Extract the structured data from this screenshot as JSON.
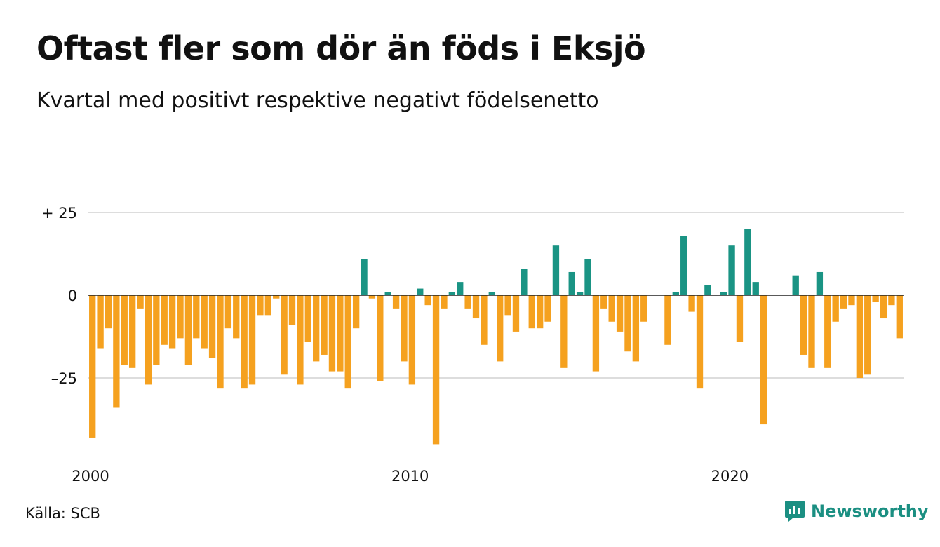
{
  "header": {
    "title": "Oftast fler som dör än föds i Eksjö",
    "subtitle": "Kvartal med positivt respektive negativt födelsenetto"
  },
  "footer": {
    "source": "Källa: SCB",
    "brand": "Newsworthy"
  },
  "colors": {
    "positive": "#1a9484",
    "negative": "#f5a11f",
    "grid": "#dddddd",
    "zero_line": "#222222",
    "brand": "#1b8f82"
  },
  "chart_data": {
    "type": "bar",
    "title": "Oftast fler som dör än föds i Eksjö",
    "subtitle": "Kvartal med positivt respektive negativt födelsenetto",
    "x_start": "2000 Q1",
    "x_ticks": [
      "2000",
      "2010",
      "2020"
    ],
    "y_ticks": [
      {
        "value": 25,
        "label": "+ 25"
      },
      {
        "value": 0,
        "label": "0"
      },
      {
        "value": -25,
        "label": "–25"
      }
    ],
    "ylim": [
      -45,
      25
    ],
    "grid": true,
    "values": [
      -43,
      -16,
      -10,
      -34,
      -21,
      -22,
      -4,
      -27,
      -21,
      -15,
      -16,
      -13,
      -21,
      -13,
      -16,
      -19,
      -28,
      -10,
      -13,
      -28,
      -27,
      -6,
      -6,
      -1,
      -24,
      -9,
      -27,
      -14,
      -20,
      -18,
      -23,
      -23,
      -28,
      -10,
      11,
      -1,
      -26,
      1,
      -4,
      -20,
      -27,
      2,
      -3,
      -45,
      -4,
      1,
      4,
      -4,
      -7,
      -15,
      1,
      -20,
      -6,
      -11,
      8,
      -10,
      -10,
      -8,
      15,
      -22,
      7,
      1,
      11,
      -23,
      -4,
      -8,
      -11,
      -17,
      -20,
      -8,
      0,
      0,
      -15,
      1,
      18,
      -5,
      -28,
      3,
      0,
      1,
      15,
      -14,
      20,
      4,
      -39,
      0,
      0,
      0,
      6,
      -18,
      -22,
      7,
      -22,
      -8,
      -4,
      -3,
      -25,
      -24,
      -2,
      -7,
      -3,
      -13
    ]
  }
}
